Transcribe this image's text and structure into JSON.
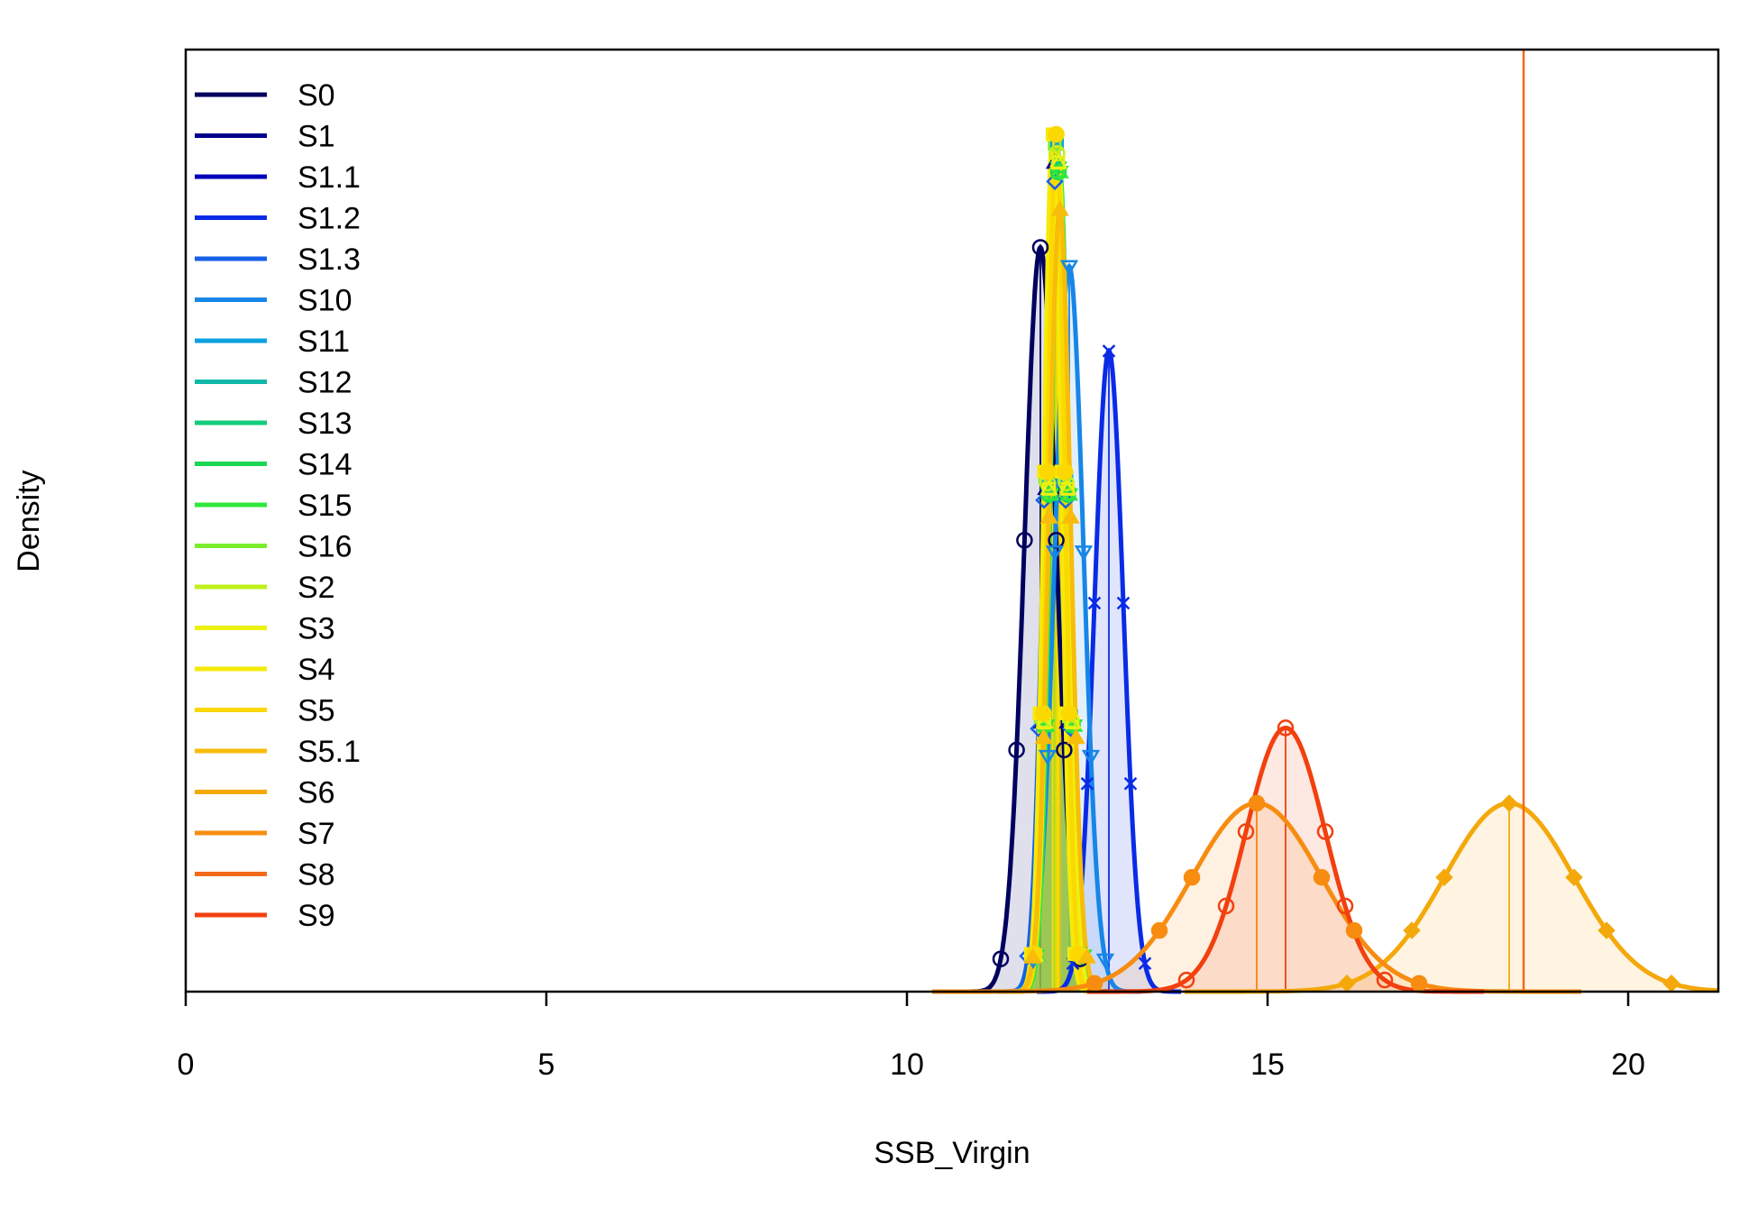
{
  "chart_data": {
    "type": "line",
    "title": "",
    "xlabel": "SSB_Virgin",
    "ylabel": "Density",
    "xlim": [
      0,
      21.25
    ],
    "ylim": [
      0,
      1
    ],
    "x_ticks": [
      "0",
      "5",
      "10",
      "15",
      "20"
    ],
    "x_tick_values": [
      0,
      5,
      10,
      15,
      20
    ],
    "grid": false,
    "legend_position": "top-left",
    "vline": {
      "x": 18.55,
      "color": "#F26A1A"
    },
    "series": [
      {
        "name": "S0",
        "color": "#000060",
        "mean": 11.85,
        "sd": 0.22,
        "peak": 0.79,
        "marker": "circle-open"
      },
      {
        "name": "S1",
        "color": "#00008B",
        "mean": 12.05,
        "sd": 0.12,
        "peak": 0.88,
        "marker": "triangle-open"
      },
      {
        "name": "S1.1",
        "color": "#0000B8",
        "mean": 12.08,
        "sd": 0.12,
        "peak": 0.88,
        "marker": "plus"
      },
      {
        "name": "S1.2",
        "color": "#0A2BE6",
        "mean": 12.8,
        "sd": 0.2,
        "peak": 0.68,
        "marker": "x"
      },
      {
        "name": "S1.3",
        "color": "#1560E8",
        "mean": 12.05,
        "sd": 0.15,
        "peak": 0.86,
        "marker": "diamond-open"
      },
      {
        "name": "S10",
        "color": "#1786E8",
        "mean": 12.25,
        "sd": 0.2,
        "peak": 0.77,
        "marker": "triangle-down-open"
      },
      {
        "name": "S11",
        "color": "#0BA0DF",
        "mean": 12.08,
        "sd": 0.13,
        "peak": 0.9,
        "marker": "square-x"
      },
      {
        "name": "S12",
        "color": "#10B8A8",
        "mean": 12.1,
        "sd": 0.13,
        "peak": 0.88,
        "marker": "star"
      },
      {
        "name": "S13",
        "color": "#12CC7C",
        "mean": 12.1,
        "sd": 0.13,
        "peak": 0.88,
        "marker": "diamond-plus"
      },
      {
        "name": "S14",
        "color": "#1AD652",
        "mean": 12.1,
        "sd": 0.13,
        "peak": 0.87,
        "marker": "circle-plus"
      },
      {
        "name": "S15",
        "color": "#30E83C",
        "mean": 12.12,
        "sd": 0.13,
        "peak": 0.87,
        "marker": "triangle-updown"
      },
      {
        "name": "S16",
        "color": "#7AED2A",
        "mean": 12.05,
        "sd": 0.13,
        "peak": 0.9,
        "marker": "square-open"
      },
      {
        "name": "S2",
        "color": "#C0F01A",
        "mean": 12.08,
        "sd": 0.13,
        "peak": 0.89,
        "marker": "circle-x"
      },
      {
        "name": "S3",
        "color": "#EEF010",
        "mean": 12.1,
        "sd": 0.13,
        "peak": 0.88,
        "marker": "triangle-square"
      },
      {
        "name": "S4",
        "color": "#F6EA08",
        "mean": 12.02,
        "sd": 0.12,
        "peak": 0.91,
        "marker": "square"
      },
      {
        "name": "S5",
        "color": "#FAD800",
        "mean": 12.07,
        "sd": 0.12,
        "peak": 0.91,
        "marker": "circle"
      },
      {
        "name": "S5.1",
        "color": "#F8BC0A",
        "mean": 12.12,
        "sd": 0.15,
        "peak": 0.83,
        "marker": "triangle"
      },
      {
        "name": "S6",
        "color": "#F4A80A",
        "mean": 18.35,
        "sd": 0.9,
        "peak": 0.2,
        "marker": "diamond"
      },
      {
        "name": "S7",
        "color": "#F78C10",
        "mean": 14.85,
        "sd": 0.9,
        "peak": 0.2,
        "marker": "circle"
      },
      {
        "name": "S8",
        "color": "#F26A1A",
        "mean": 18.55,
        "sd": 0.01,
        "peak": 0.0,
        "marker": "none"
      },
      {
        "name": "S9",
        "color": "#F2400E",
        "mean": 15.25,
        "sd": 0.55,
        "peak": 0.28,
        "marker": "circle-open"
      }
    ]
  }
}
